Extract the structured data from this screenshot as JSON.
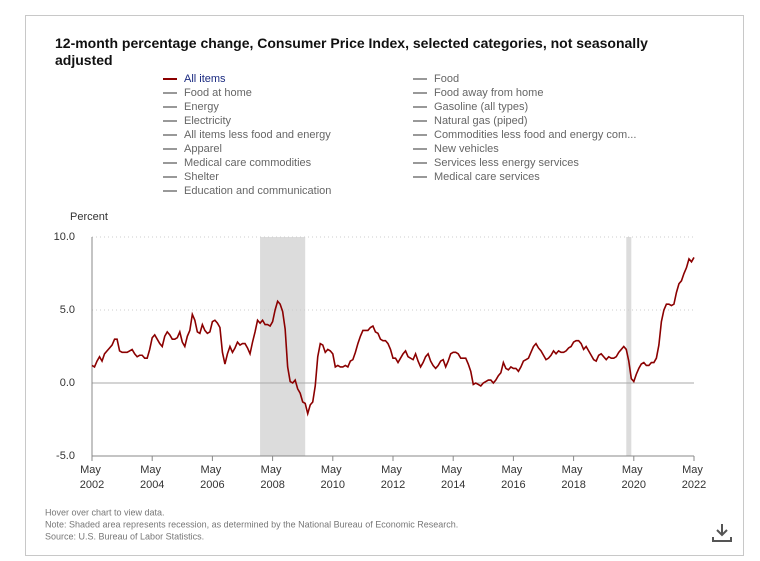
{
  "chart_data": {
    "type": "line",
    "title": "12-month percentage change, Consumer Price Index, selected categories, not seasonally adjusted",
    "y_label": "Percent",
    "series": [
      {
        "name": "All items",
        "color": "#8b0000",
        "values": [
          1.2,
          1.1,
          1.5,
          1.8,
          1.5,
          2.0,
          2.2,
          2.4,
          2.6,
          3.0,
          3.0,
          2.2,
          2.1,
          2.1,
          2.1,
          2.2,
          2.3,
          2.0,
          1.8,
          1.9,
          1.9,
          1.7,
          1.7,
          2.3,
          3.1,
          3.3,
          3.0,
          2.7,
          2.5,
          3.2,
          3.5,
          3.3,
          3.0,
          3.0,
          3.1,
          3.5,
          2.8,
          2.5,
          3.2,
          3.6,
          4.7,
          4.3,
          3.5,
          3.4,
          4.0,
          3.6,
          3.4,
          3.5,
          4.2,
          4.3,
          4.1,
          3.8,
          2.1,
          1.3,
          2.0,
          2.5,
          2.1,
          2.4,
          2.8,
          2.6,
          2.7,
          2.7,
          2.4,
          2.0,
          2.8,
          3.5,
          4.3,
          4.1,
          4.3,
          4.0,
          4.0,
          3.9,
          4.2,
          5.0,
          5.6,
          5.4,
          4.9,
          3.7,
          1.1,
          0.1,
          0.0,
          0.2,
          -0.4,
          -0.7,
          -1.3,
          -1.4,
          -2.1,
          -1.5,
          -1.3,
          -0.2,
          1.8,
          2.7,
          2.6,
          2.1,
          2.3,
          2.2,
          2.0,
          1.1,
          1.2,
          1.1,
          1.1,
          1.2,
          1.1,
          1.5,
          1.6,
          2.1,
          2.7,
          3.2,
          3.6,
          3.6,
          3.6,
          3.8,
          3.9,
          3.5,
          3.4,
          3.0,
          2.9,
          2.9,
          2.7,
          2.3,
          1.7,
          1.7,
          1.4,
          1.7,
          2.0,
          2.2,
          1.8,
          1.7,
          1.6,
          2.0,
          1.5,
          1.1,
          1.4,
          1.8,
          2.0,
          1.5,
          1.2,
          1.0,
          1.2,
          1.5,
          1.6,
          1.1,
          1.5,
          2.0,
          2.1,
          2.1,
          2.0,
          1.7,
          1.7,
          1.7,
          1.3,
          0.8,
          -0.1,
          0.0,
          -0.1,
          -0.2,
          0.0,
          0.1,
          0.2,
          0.2,
          0.0,
          0.2,
          0.5,
          0.7,
          1.4,
          1.0,
          0.9,
          1.1,
          1.0,
          1.0,
          0.8,
          1.1,
          1.5,
          1.6,
          1.7,
          2.1,
          2.5,
          2.7,
          2.4,
          2.2,
          1.9,
          1.6,
          1.7,
          1.9,
          2.2,
          2.0,
          2.2,
          2.1,
          2.1,
          2.2,
          2.4,
          2.5,
          2.8,
          2.9,
          2.9,
          2.7,
          2.3,
          2.5,
          2.2,
          1.9,
          1.6,
          1.5,
          1.9,
          2.0,
          1.8,
          1.6,
          1.8,
          1.7,
          1.7,
          1.8,
          2.1,
          2.3,
          2.5,
          2.3,
          1.5,
          0.3,
          0.1,
          0.6,
          1.0,
          1.3,
          1.4,
          1.2,
          1.2,
          1.4,
          1.4,
          1.7,
          2.6,
          4.2,
          5.0,
          5.4,
          5.4,
          5.3,
          5.4,
          6.2,
          6.8,
          7.0,
          7.5,
          7.9,
          8.5,
          8.3,
          8.6
        ]
      }
    ],
    "other_series": [
      {
        "name": "Food",
        "color": "#999999"
      },
      {
        "name": "Food at home",
        "color": "#999999"
      },
      {
        "name": "Food away from home",
        "color": "#999999"
      },
      {
        "name": "Energy",
        "color": "#999999"
      },
      {
        "name": "Gasoline (all types)",
        "color": "#999999"
      },
      {
        "name": "Electricity",
        "color": "#999999"
      },
      {
        "name": "Natural gas (piped)",
        "color": "#999999"
      },
      {
        "name": "All items less food and energy",
        "color": "#999999"
      },
      {
        "name": "Commodities less food and energy com...",
        "color": "#999999"
      },
      {
        "name": "Apparel",
        "color": "#999999"
      },
      {
        "name": "New vehicles",
        "color": "#999999"
      },
      {
        "name": "Medical care commodities",
        "color": "#999999"
      },
      {
        "name": "Services less energy services",
        "color": "#999999"
      },
      {
        "name": "Shelter",
        "color": "#999999"
      },
      {
        "name": "Medical care services",
        "color": "#999999"
      },
      {
        "name": "Education and communication",
        "color": "#999999"
      }
    ],
    "x": [
      "2002-05",
      "2002-06",
      "2002-07",
      "2002-08",
      "2002-09",
      "2002-10",
      "2002-11",
      "2002-12",
      "2003-01",
      "2003-02",
      "2003-03",
      "2003-04",
      "2003-05",
      "2003-06",
      "2003-07",
      "2003-08",
      "2003-09",
      "2003-10",
      "2003-11",
      "2003-12",
      "2004-01",
      "2004-02",
      "2004-03",
      "2004-04",
      "2004-05",
      "2004-06",
      "2004-07",
      "2004-08",
      "2004-09",
      "2004-10",
      "2004-11",
      "2004-12",
      "2005-01",
      "2005-02",
      "2005-03",
      "2005-04",
      "2005-05",
      "2005-06",
      "2005-07",
      "2005-08",
      "2005-09",
      "2005-10",
      "2005-11",
      "2005-12",
      "2006-01",
      "2006-02",
      "2006-03",
      "2006-04",
      "2006-05",
      "2006-06",
      "2006-07",
      "2006-08",
      "2006-09",
      "2006-10",
      "2006-11",
      "2006-12",
      "2007-01",
      "2007-02",
      "2007-03",
      "2007-04",
      "2007-05",
      "2007-06",
      "2007-07",
      "2007-08",
      "2007-09",
      "2007-10",
      "2007-11",
      "2007-12",
      "2008-01",
      "2008-02",
      "2008-03",
      "2008-04",
      "2008-05",
      "2008-06",
      "2008-07",
      "2008-08",
      "2008-09",
      "2008-10",
      "2008-11",
      "2008-12",
      "2009-01",
      "2009-02",
      "2009-03",
      "2009-04",
      "2009-05",
      "2009-06",
      "2009-07",
      "2009-08",
      "2009-09",
      "2009-10",
      "2009-11",
      "2009-12",
      "2010-01",
      "2010-02",
      "2010-03",
      "2010-04",
      "2010-05",
      "2010-06",
      "2010-07",
      "2010-08",
      "2010-09",
      "2010-10",
      "2010-11",
      "2010-12",
      "2011-01",
      "2011-02",
      "2011-03",
      "2011-04",
      "2011-05",
      "2011-06",
      "2011-07",
      "2011-08",
      "2011-09",
      "2011-10",
      "2011-11",
      "2011-12",
      "2012-01",
      "2012-02",
      "2012-03",
      "2012-04",
      "2012-05",
      "2012-06",
      "2012-07",
      "2012-08",
      "2012-09",
      "2012-10",
      "2012-11",
      "2012-12",
      "2013-01",
      "2013-02",
      "2013-03",
      "2013-04",
      "2013-05",
      "2013-06",
      "2013-07",
      "2013-08",
      "2013-09",
      "2013-10",
      "2013-11",
      "2013-12",
      "2014-01",
      "2014-02",
      "2014-03",
      "2014-04",
      "2014-05",
      "2014-06",
      "2014-07",
      "2014-08",
      "2014-09",
      "2014-10",
      "2014-11",
      "2014-12",
      "2015-01",
      "2015-02",
      "2015-03",
      "2015-04",
      "2015-05",
      "2015-06",
      "2015-07",
      "2015-08",
      "2015-09",
      "2015-10",
      "2015-11",
      "2015-12",
      "2016-01",
      "2016-02",
      "2016-03",
      "2016-04",
      "2016-05",
      "2016-06",
      "2016-07",
      "2016-08",
      "2016-09",
      "2016-10",
      "2016-11",
      "2016-12",
      "2017-01",
      "2017-02",
      "2017-03",
      "2017-04",
      "2017-05",
      "2017-06",
      "2017-07",
      "2017-08",
      "2017-09",
      "2017-10",
      "2017-11",
      "2017-12",
      "2018-01",
      "2018-02",
      "2018-03",
      "2018-04",
      "2018-05",
      "2018-06",
      "2018-07",
      "2018-08",
      "2018-09",
      "2018-10",
      "2018-11",
      "2018-12",
      "2019-01",
      "2019-02",
      "2019-03",
      "2019-04",
      "2019-05",
      "2019-06",
      "2019-07",
      "2019-08",
      "2019-09",
      "2019-10",
      "2019-11",
      "2019-12",
      "2020-01",
      "2020-02",
      "2020-03",
      "2020-04",
      "2020-05",
      "2020-06",
      "2020-07",
      "2020-08",
      "2020-09",
      "2020-10",
      "2020-11",
      "2020-12",
      "2021-01",
      "2021-02",
      "2021-03",
      "2021-04",
      "2021-05",
      "2021-06",
      "2021-07",
      "2021-08",
      "2021-09",
      "2021-10",
      "2021-11",
      "2021-12",
      "2022-01",
      "2022-02",
      "2022-03",
      "2022-04",
      "2022-05"
    ],
    "xlim": [
      "2002-05",
      "2022-05"
    ],
    "xticks": [
      {
        "value": "2002-05",
        "label": "May 2002"
      },
      {
        "value": "2004-05",
        "label": "May 2004"
      },
      {
        "value": "2006-05",
        "label": "May 2006"
      },
      {
        "value": "2008-05",
        "label": "May 2008"
      },
      {
        "value": "2010-05",
        "label": "May 2010"
      },
      {
        "value": "2012-05",
        "label": "May 2012"
      },
      {
        "value": "2014-05",
        "label": "May 2014"
      },
      {
        "value": "2016-05",
        "label": "May 2016"
      },
      {
        "value": "2018-05",
        "label": "May 2018"
      },
      {
        "value": "2020-05",
        "label": "May 2020"
      },
      {
        "value": "2022-05",
        "label": "May 2022"
      }
    ],
    "ylim": [
      -5,
      10
    ],
    "yticks": [
      {
        "value": -5,
        "label": "-5.0"
      },
      {
        "value": 0,
        "label": "0.0"
      },
      {
        "value": 5,
        "label": "5.0"
      },
      {
        "value": 10,
        "label": "10.0"
      }
    ],
    "grid": true,
    "recessions": [
      {
        "start": "2007-12",
        "end": "2009-06"
      },
      {
        "start": "2020-02",
        "end": "2020-04"
      }
    ],
    "recession_color": "#dcdcdc",
    "notes": [
      "Hover over chart to view data.",
      "Note: Shaded area represents recession, as determined by the National Bureau of Economic Research.",
      "Source: U.S. Bureau of Labor Statistics."
    ]
  }
}
